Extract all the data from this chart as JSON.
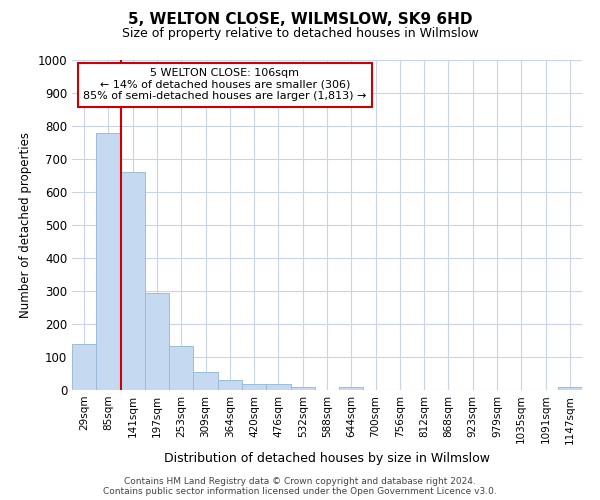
{
  "title": "5, WELTON CLOSE, WILMSLOW, SK9 6HD",
  "subtitle": "Size of property relative to detached houses in Wilmslow",
  "xlabel": "Distribution of detached houses by size in Wilmslow",
  "ylabel": "Number of detached properties",
  "categories": [
    "29sqm",
    "85sqm",
    "141sqm",
    "197sqm",
    "253sqm",
    "309sqm",
    "364sqm",
    "420sqm",
    "476sqm",
    "532sqm",
    "588sqm",
    "644sqm",
    "700sqm",
    "756sqm",
    "812sqm",
    "868sqm",
    "923sqm",
    "979sqm",
    "1035sqm",
    "1091sqm",
    "1147sqm"
  ],
  "values": [
    140,
    780,
    660,
    295,
    133,
    55,
    30,
    18,
    18,
    8,
    0,
    8,
    0,
    0,
    0,
    0,
    0,
    0,
    0,
    0,
    10
  ],
  "bar_color": "#c5d9f0",
  "bar_edge_color": "#9bbcd8",
  "vline_x_idx": 1.5,
  "vline_color": "#cc0000",
  "annotation_text": "5 WELTON CLOSE: 106sqm\n← 14% of detached houses are smaller (306)\n85% of semi-detached houses are larger (1,813) →",
  "annotation_box_color": "#cc0000",
  "ylim": [
    0,
    1000
  ],
  "yticks": [
    0,
    100,
    200,
    300,
    400,
    500,
    600,
    700,
    800,
    900,
    1000
  ],
  "footer_line1": "Contains HM Land Registry data © Crown copyright and database right 2024.",
  "footer_line2": "Contains public sector information licensed under the Open Government Licence v3.0.",
  "bg_color": "#ffffff",
  "grid_color": "#c8d4e8",
  "figsize": [
    6.0,
    5.0
  ],
  "dpi": 100
}
